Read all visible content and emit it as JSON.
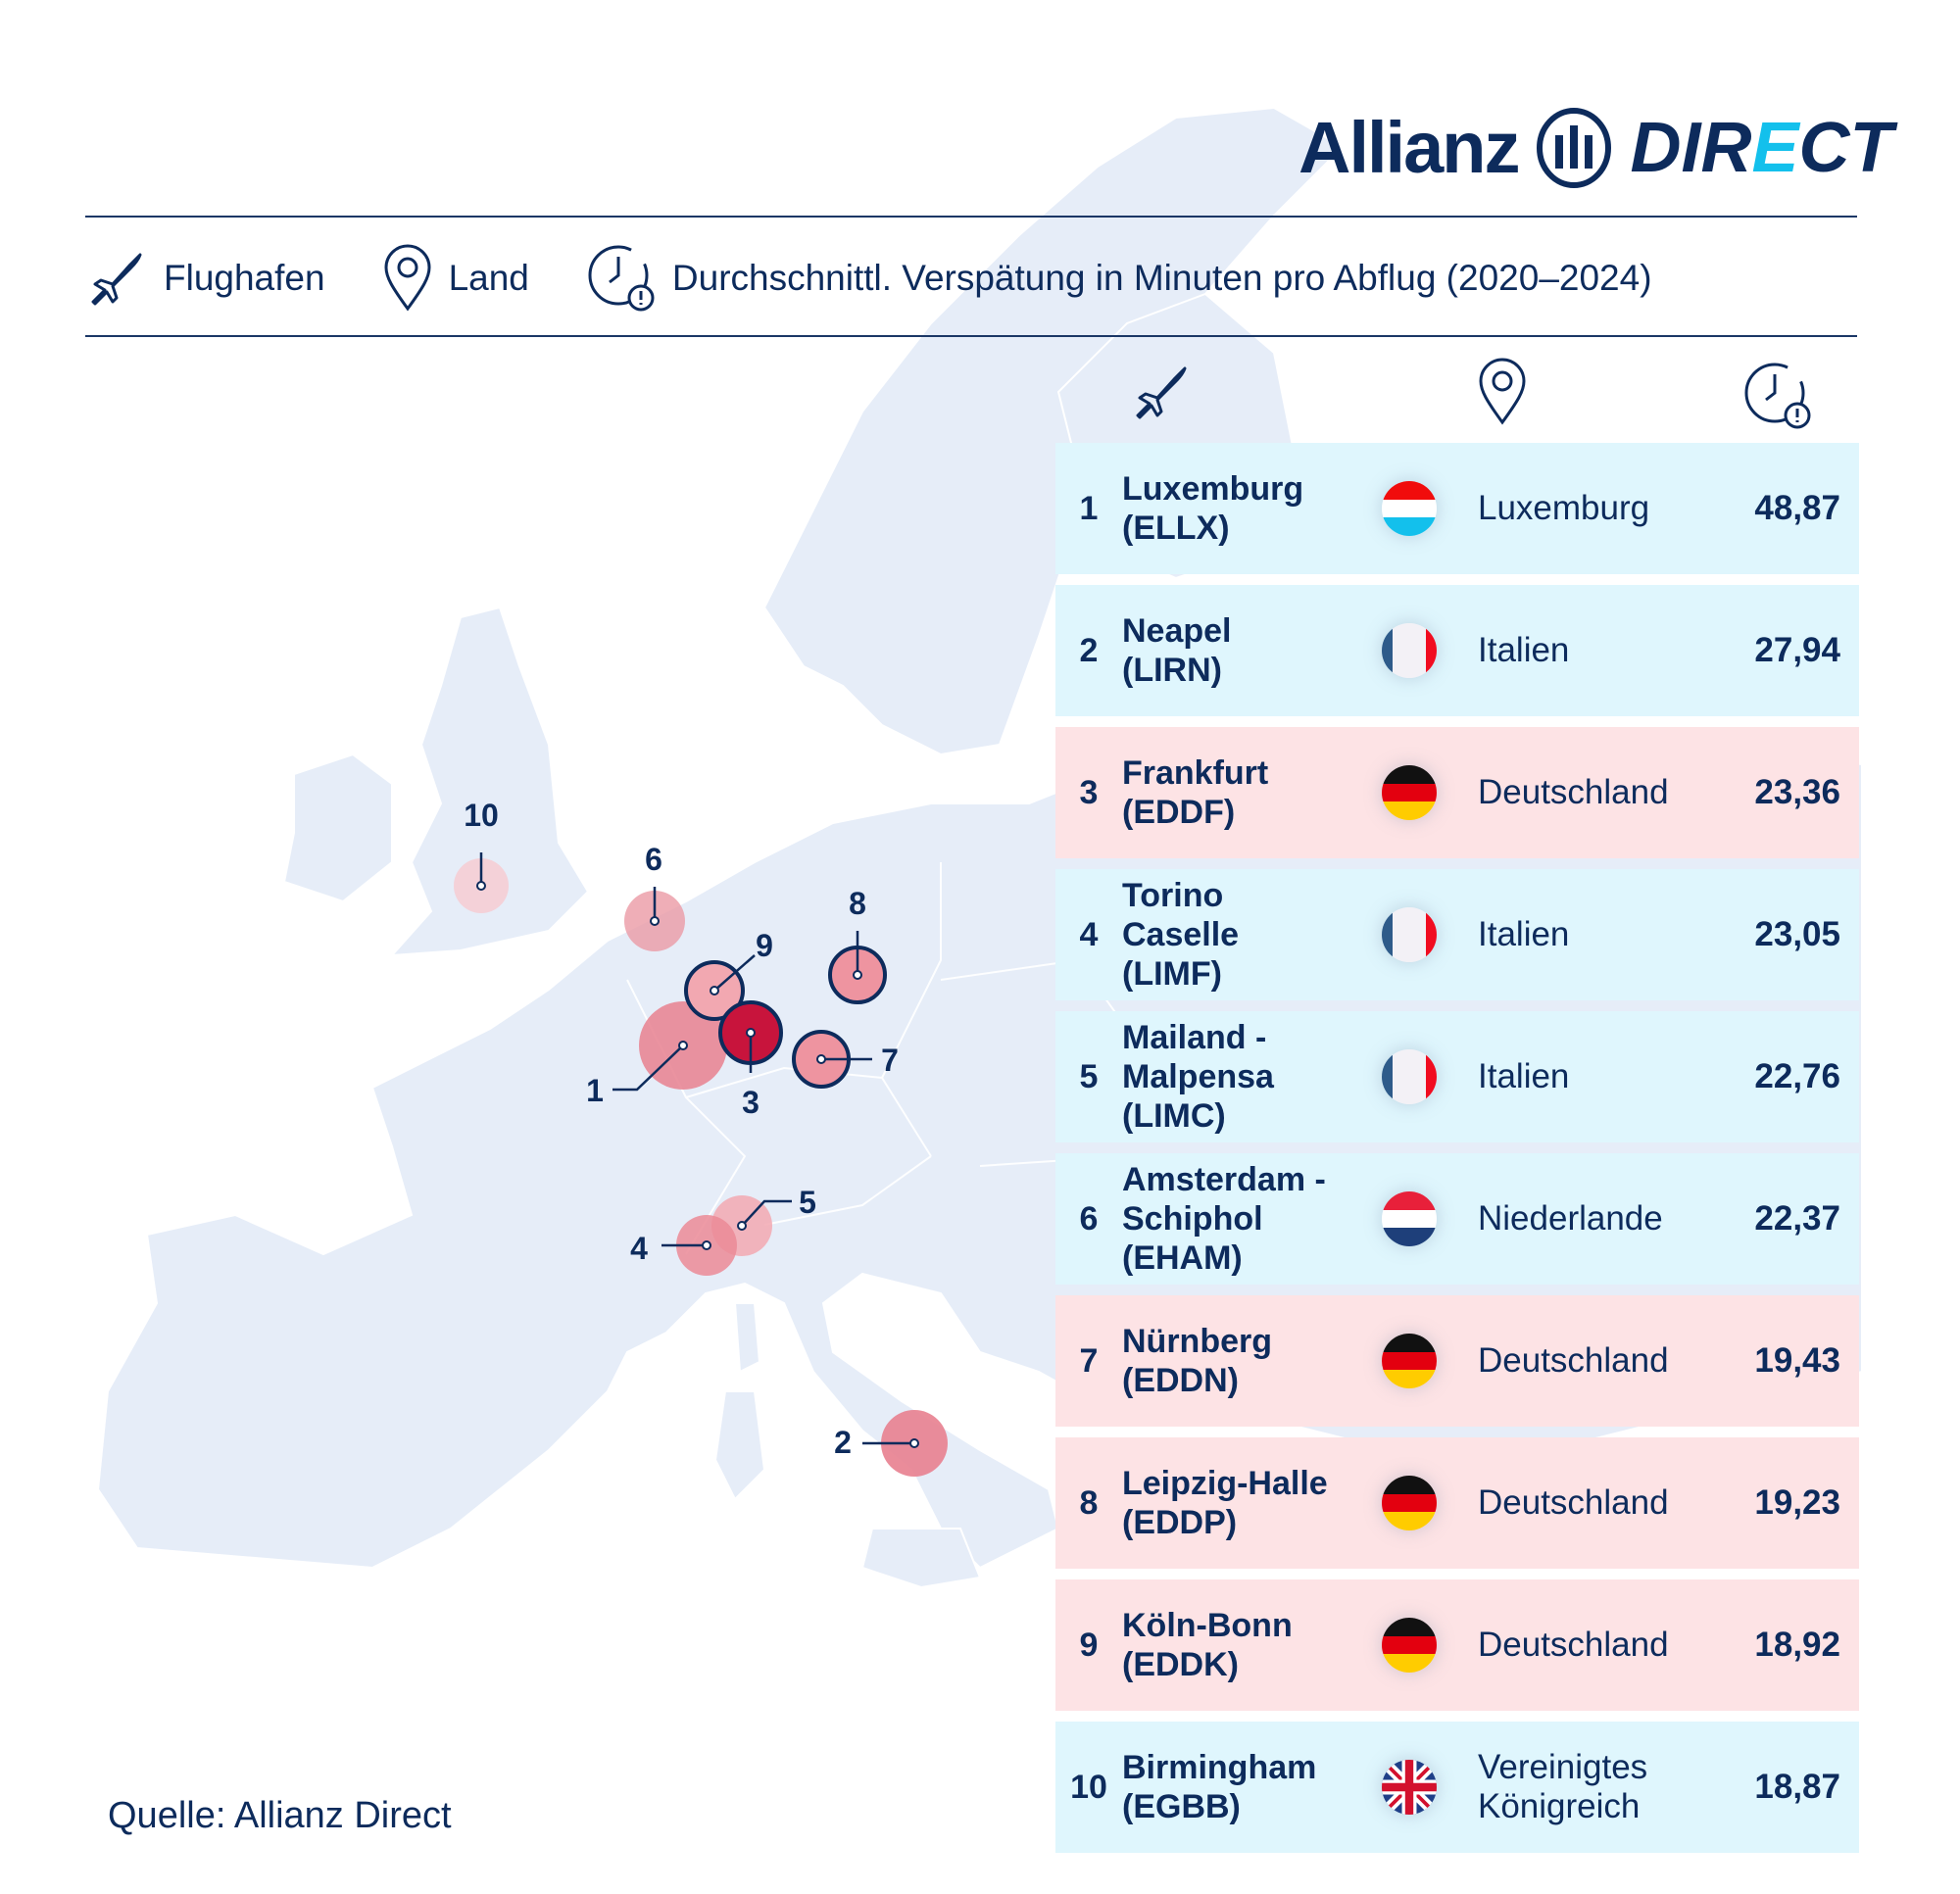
{
  "logo": {
    "brand": "Allianz",
    "product_prefix": "DIR",
    "product_e": "E",
    "product_suffix": "CT"
  },
  "legend": {
    "airport": {
      "icon": "plane-icon",
      "label": "Flughafen"
    },
    "country": {
      "icon": "location-pin-icon",
      "label": "Land"
    },
    "delay": {
      "icon": "clock-alert-icon",
      "label": "Durchschnittl. Verspätung in Minuten pro Abflug (2020–2024)"
    }
  },
  "colors": {
    "navy": "#0d2b5c",
    "row_blue": "#dff6fd",
    "row_pink": "#fde3e5",
    "bubble": "#e8808f",
    "bubble_top": "#c8143c",
    "accent": "#13c0ec"
  },
  "rows": [
    {
      "rank": "1",
      "airport": [
        "Luxemburg",
        "(ELLX)"
      ],
      "country": [
        "Luxemburg"
      ],
      "flag": "lu",
      "value": "48,87",
      "tone": "blue"
    },
    {
      "rank": "2",
      "airport": [
        "Neapel",
        "(LIRN)"
      ],
      "country": [
        "Italien"
      ],
      "flag": "it",
      "value": "27,94",
      "tone": "blue"
    },
    {
      "rank": "3",
      "airport": [
        "Frankfurt",
        "(EDDF)"
      ],
      "country": [
        "Deutschland"
      ],
      "flag": "de",
      "value": "23,36",
      "tone": "pink"
    },
    {
      "rank": "4",
      "airport": [
        "Torino",
        "Caselle",
        "(LIMF)"
      ],
      "country": [
        "Italien"
      ],
      "flag": "it",
      "value": "23,05",
      "tone": "blue"
    },
    {
      "rank": "5",
      "airport": [
        "Mailand -",
        "Malpensa",
        "(LIMC)"
      ],
      "country": [
        "Italien"
      ],
      "flag": "it",
      "value": "22,76",
      "tone": "blue"
    },
    {
      "rank": "6",
      "airport": [
        "Amsterdam -",
        "Schiphol",
        "(EHAM)"
      ],
      "country": [
        "Niederlande"
      ],
      "flag": "nl",
      "value": "22,37",
      "tone": "blue"
    },
    {
      "rank": "7",
      "airport": [
        "Nürnberg",
        "(EDDN)"
      ],
      "country": [
        "Deutschland"
      ],
      "flag": "de",
      "value": "19,43",
      "tone": "pink"
    },
    {
      "rank": "8",
      "airport": [
        "Leipzig-Halle",
        "(EDDP)"
      ],
      "country": [
        "Deutschland"
      ],
      "flag": "de",
      "value": "19,23",
      "tone": "pink"
    },
    {
      "rank": "9",
      "airport": [
        "Köln-Bonn",
        "(EDDK)"
      ],
      "country": [
        "Deutschland"
      ],
      "flag": "de",
      "value": "18,92",
      "tone": "pink"
    },
    {
      "rank": "10",
      "airport": [
        "Birmingham",
        "(EGBB)"
      ],
      "country": [
        "Vereinigtes",
        "Königreich"
      ],
      "flag": "gb",
      "value": "18,87",
      "tone": "blue"
    }
  ],
  "source": "Quelle: Allianz Direct"
}
